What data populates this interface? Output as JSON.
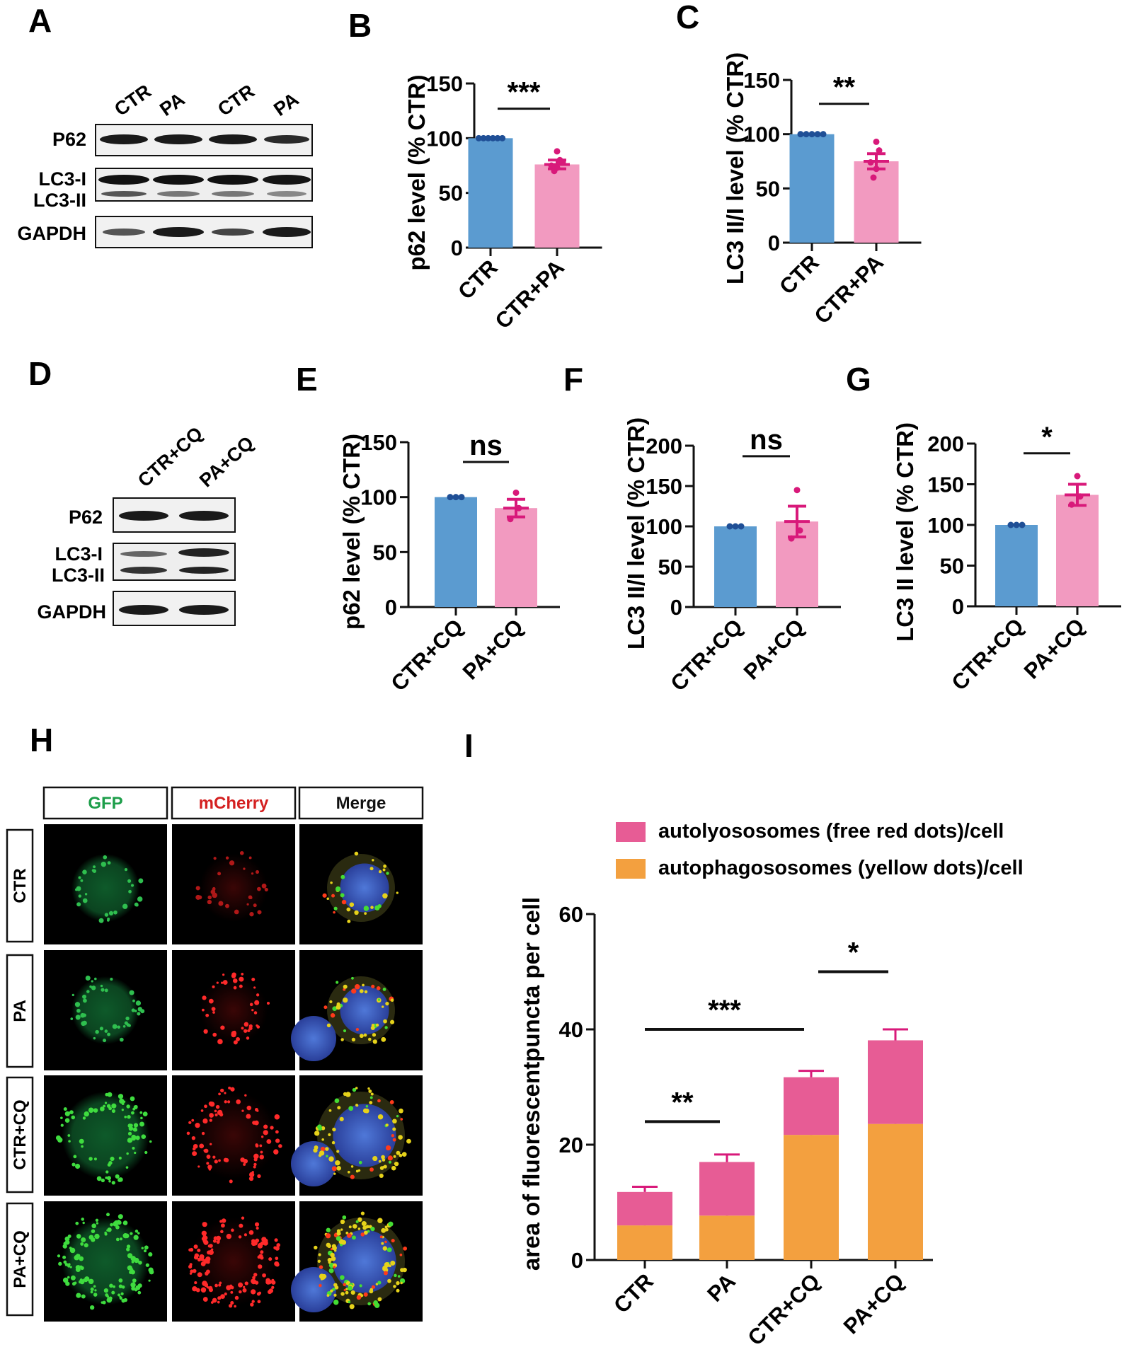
{
  "colors": {
    "blue": "#5b9bd0",
    "pink": "#f29ac0",
    "magenta": "#d8197a",
    "orange": "#f3a03f",
    "dark_pink": "#e75c95"
  },
  "panels": {
    "A": "A",
    "B": "B",
    "C": "C",
    "D": "D",
    "E": "E",
    "F": "F",
    "G": "G",
    "H": "H",
    "I": "I"
  },
  "blot_A": {
    "lanes": [
      "CTR",
      "PA",
      "CTR",
      "PA"
    ],
    "rows": {
      "p62": "P62",
      "lc3_i": "LC3-I",
      "lc3_ii": "LC3-II",
      "gapdh": "GAPDH"
    }
  },
  "blot_D": {
    "lanes": [
      "CTR+CQ",
      "PA+CQ"
    ],
    "rows": {
      "p62": "P62",
      "lc3_i": "LC3-I",
      "lc3_ii": "LC3-II",
      "gapdh": "GAPDH"
    }
  },
  "micrograph": {
    "channels": [
      "GFP",
      "mCherry",
      "Merge"
    ],
    "rows": [
      "CTR",
      "PA",
      "CTR+CQ",
      "PA+CQ"
    ]
  },
  "chart_data": [
    {
      "panel": "B",
      "type": "bar",
      "ylabel": "p62 level (% CTR)",
      "categories": [
        "CTR",
        "CTR+PA"
      ],
      "values": [
        100,
        76
      ],
      "errors": [
        0,
        4
      ],
      "points": [
        [
          100,
          100,
          100,
          100,
          100,
          100
        ],
        [
          88,
          80,
          75,
          73,
          70,
          78
        ]
      ],
      "ylim": [
        0,
        150
      ],
      "yticks": [
        0,
        50,
        100,
        150
      ],
      "significance": {
        "pair": [
          0,
          1
        ],
        "label": "***",
        "y": 127
      }
    },
    {
      "panel": "C",
      "type": "bar",
      "ylabel": "LC3 II/I level (% CTR)",
      "categories": [
        "CTR",
        "CTR+PA"
      ],
      "values": [
        100,
        75
      ],
      "errors": [
        0,
        7
      ],
      "points": [
        [
          100,
          100,
          100,
          100,
          100
        ],
        [
          93,
          85,
          74,
          68,
          60
        ]
      ],
      "ylim": [
        0,
        150
      ],
      "yticks": [
        0,
        50,
        100,
        150
      ],
      "significance": {
        "pair": [
          0,
          1
        ],
        "label": "**",
        "y": 128
      }
    },
    {
      "panel": "E",
      "type": "bar",
      "ylabel": "p62 level (% CTR)",
      "categories": [
        "CTR+CQ",
        "PA+CQ"
      ],
      "values": [
        100,
        90
      ],
      "errors": [
        0,
        8
      ],
      "points": [
        [
          100,
          100,
          100
        ],
        [
          104,
          90,
          80
        ]
      ],
      "ylim": [
        0,
        150
      ],
      "yticks": [
        0,
        50,
        100,
        150
      ],
      "significance": {
        "pair": [
          0,
          1
        ],
        "label": "ns",
        "y": 132
      }
    },
    {
      "panel": "F",
      "type": "bar",
      "ylabel": "LC3 II/I level (% CTR)",
      "categories": [
        "CTR+CQ",
        "PA+CQ"
      ],
      "values": [
        100,
        106
      ],
      "errors": [
        0,
        19
      ],
      "points": [
        [
          100,
          100,
          100
        ],
        [
          145,
          95,
          85
        ]
      ],
      "ylim": [
        0,
        200
      ],
      "yticks": [
        0,
        50,
        100,
        150,
        200
      ],
      "significance": {
        "pair": [
          0,
          1
        ],
        "label": "ns",
        "y": 187
      }
    },
    {
      "panel": "G",
      "type": "bar",
      "ylabel": "LC3 II level (% CTR)",
      "categories": [
        "CTR+CQ",
        "PA+CQ"
      ],
      "values": [
        100,
        137
      ],
      "errors": [
        0,
        13
      ],
      "points": [
        [
          100,
          100,
          100
        ],
        [
          160,
          135,
          125
        ]
      ],
      "ylim": [
        0,
        200
      ],
      "yticks": [
        0,
        50,
        100,
        150,
        200
      ],
      "significance": {
        "pair": [
          0,
          1
        ],
        "label": "*",
        "y": 188
      }
    },
    {
      "panel": "I",
      "type": "bar",
      "stacked": true,
      "ylabel": "area of fluorescentpuncta per cell",
      "categories": [
        "CTR",
        "PA",
        "CTR+CQ",
        "PA+CQ"
      ],
      "series": [
        {
          "name": "autophagososomes (yellow dots)/cell",
          "values": [
            6,
            7.7,
            21.7,
            23.6
          ],
          "errors": [
            0.3,
            0.6,
            2,
            1.3
          ]
        },
        {
          "name": "autolyososomes (free red dots)/cell",
          "values": [
            5.8,
            9.3,
            10,
            14.5
          ],
          "errors": [
            0.9,
            1.3,
            1.1,
            1.9
          ]
        }
      ],
      "ylim": [
        0,
        60
      ],
      "yticks": [
        0,
        20,
        40,
        60
      ],
      "legend_position": "top",
      "significance": [
        {
          "pair": [
            0,
            1
          ],
          "label": "**",
          "y": 24
        },
        {
          "pair": [
            0,
            2
          ],
          "label": "***",
          "y": 40
        },
        {
          "pair": [
            2,
            3
          ],
          "label": "*",
          "y": 50
        }
      ]
    }
  ]
}
